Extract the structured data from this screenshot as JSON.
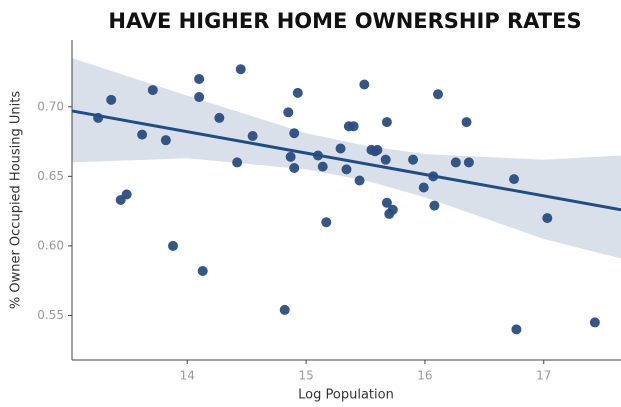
{
  "chart_data": {
    "type": "scatter",
    "title": "HAVE HIGHER HOME OWNERSHIP RATES",
    "x_label": "Log Population",
    "y_label": "% Owner Occupied Housing Units",
    "color": "#2a4d7f",
    "x": [
      13.25,
      13.36,
      13.44,
      13.49,
      13.62,
      13.71,
      13.82,
      13.88,
      14.1,
      14.1,
      14.13,
      14.27,
      14.42,
      14.45,
      14.55,
      14.82,
      14.85,
      14.87,
      14.9,
      14.9,
      14.93,
      15.1,
      15.14,
      15.17,
      15.29,
      15.34,
      15.36,
      15.4,
      15.45,
      15.49,
      15.55,
      15.58,
      15.6,
      15.67,
      15.68,
      15.68,
      15.7,
      15.73,
      15.9,
      15.99,
      16.07,
      16.08,
      16.11,
      16.26,
      16.35,
      16.37,
      16.75,
      16.77,
      17.03,
      17.43
    ],
    "values": [
      0.692,
      0.705,
      0.633,
      0.637,
      0.68,
      0.712,
      0.676,
      0.6,
      0.72,
      0.707,
      0.582,
      0.692,
      0.66,
      0.727,
      0.679,
      0.554,
      0.696,
      0.664,
      0.656,
      0.681,
      0.71,
      0.665,
      0.657,
      0.617,
      0.67,
      0.655,
      0.686,
      0.686,
      0.647,
      0.716,
      0.669,
      0.668,
      0.669,
      0.662,
      0.689,
      0.631,
      0.623,
      0.626,
      0.662,
      0.642,
      0.65,
      0.629,
      0.709,
      0.66,
      0.689,
      0.66,
      0.648,
      0.54,
      0.62,
      0.545
    ],
    "regression": {
      "color": "#1f4e86",
      "x": [
        13.03,
        17.65
      ],
      "y": [
        0.697,
        0.626
      ]
    },
    "band": {
      "color": "#d3dbe6",
      "x": [
        13.03,
        14,
        15,
        15.5,
        16,
        17,
        17.65
      ],
      "upper": [
        0.735,
        0.708,
        0.681,
        0.672,
        0.666,
        0.662,
        0.665
      ],
      "lower": [
        0.66,
        0.663,
        0.655,
        0.647,
        0.635,
        0.605,
        0.591
      ]
    },
    "xlim": [
      13.03,
      17.65
    ],
    "ylim": [
      0.518,
      0.748
    ],
    "xticks": [
      14,
      15,
      16,
      17
    ],
    "yticks": [
      0.55,
      {
        "value": 0.6,
        "label": "0.60"
      },
      0.65,
      {
        "value": 0.7,
        "label": "0.70"
      }
    ]
  }
}
